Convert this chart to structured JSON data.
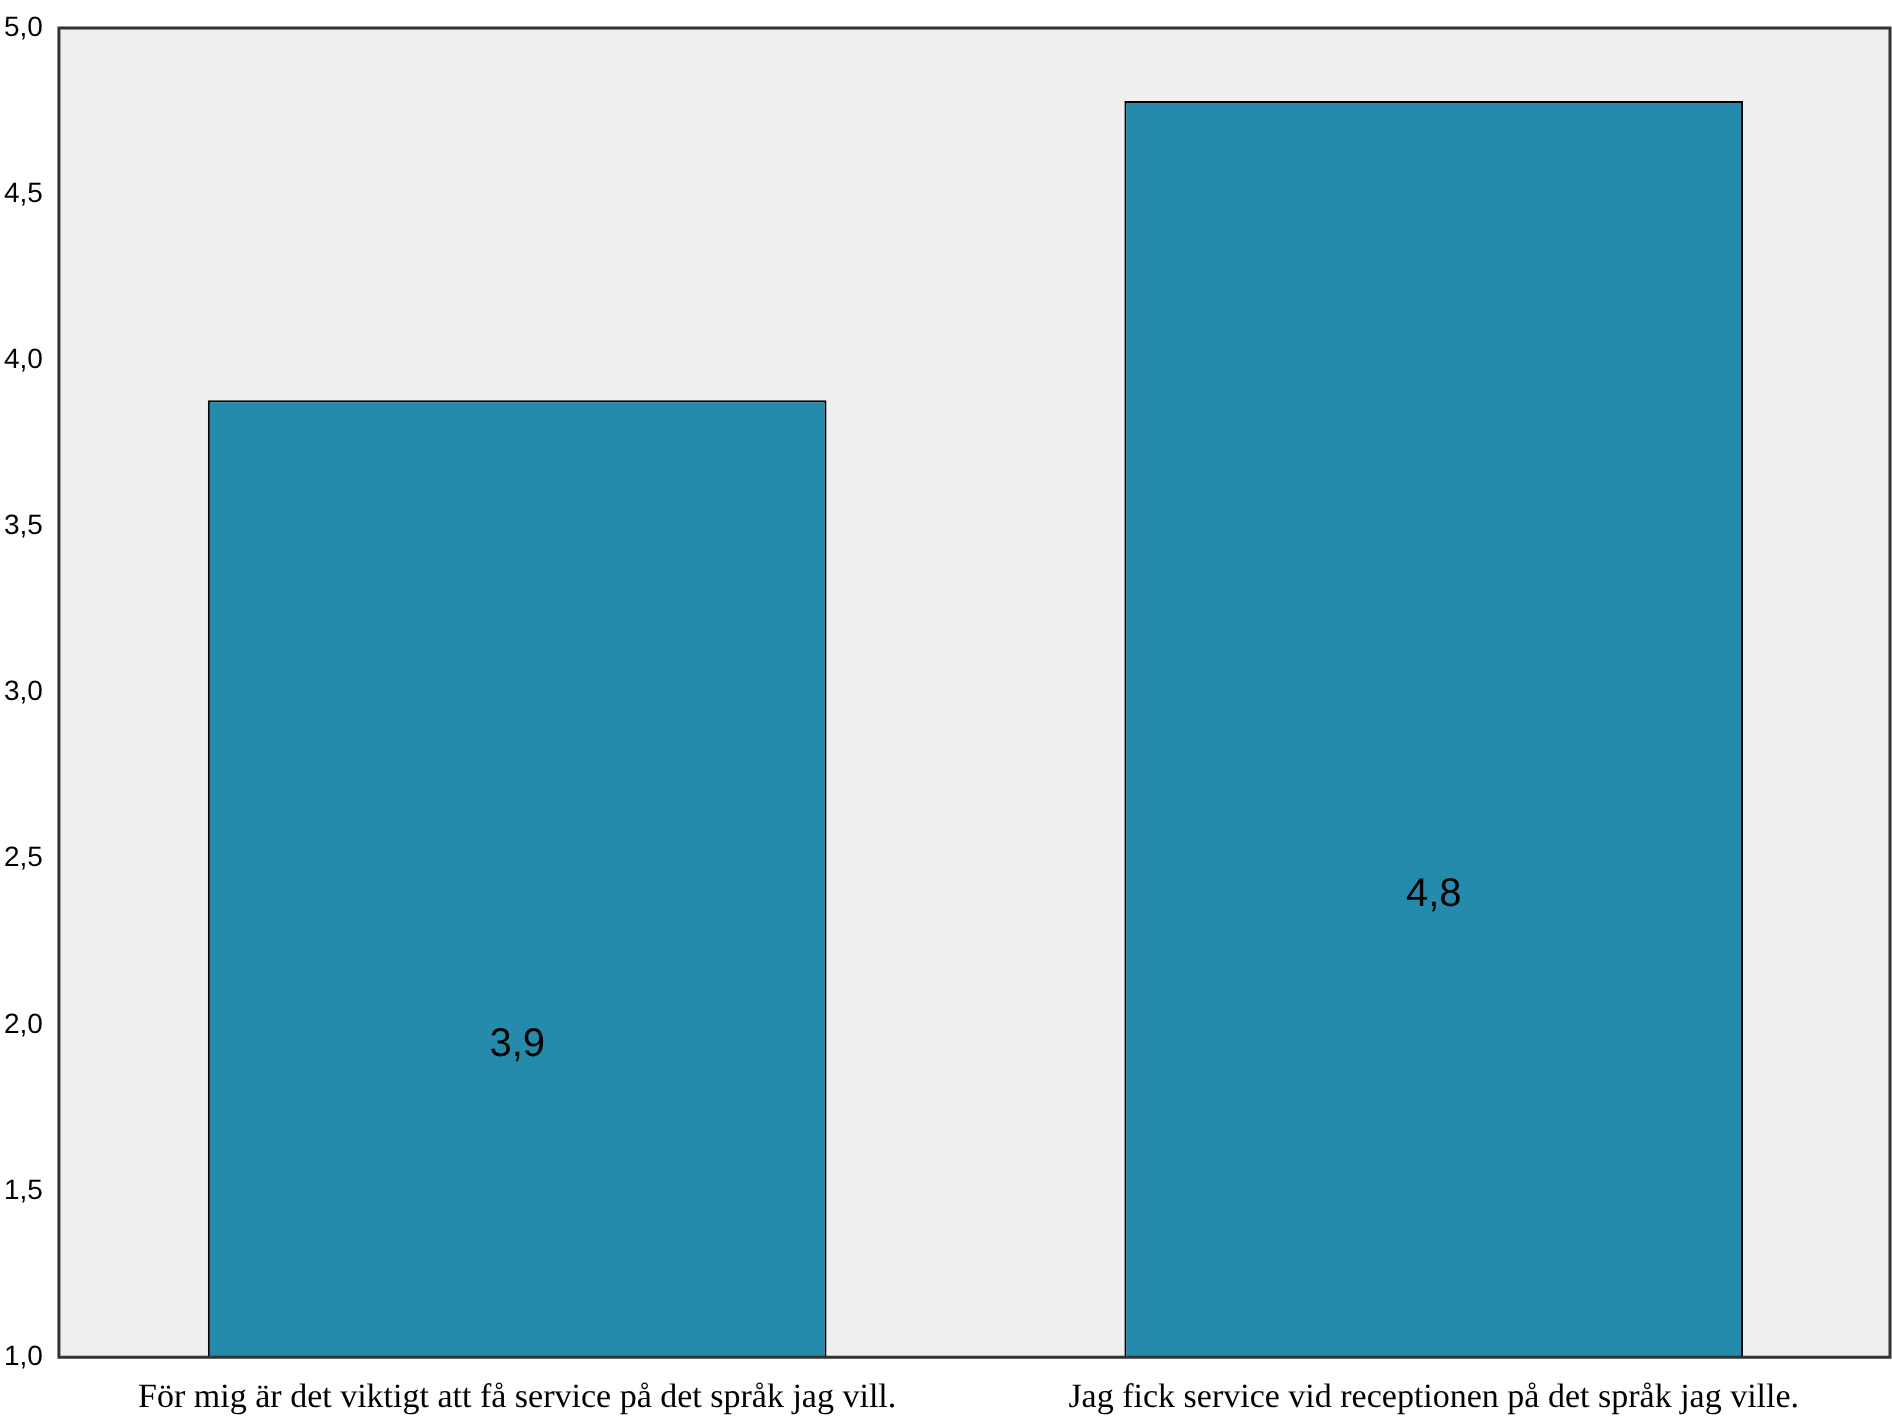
{
  "chart_data": {
    "type": "bar",
    "categories": [
      "För mig är det viktigt att få service på det språk jag vill.",
      "Jag fick service vid receptionen på det språk jag ville."
    ],
    "values": [
      3.88,
      4.78
    ],
    "color": "#248bad",
    "value_labels": [
      "3,9",
      "4,8"
    ],
    "ylim": [
      1,
      5
    ],
    "yticks": [
      {
        "value": 1,
        "label": "1,0"
      },
      {
        "value": 1.5,
        "label": "1,5"
      },
      {
        "value": 2,
        "label": "2,0"
      },
      {
        "value": 2.5,
        "label": "2,5"
      },
      {
        "value": 3,
        "label": "3,0"
      },
      {
        "value": 3.5,
        "label": "3,5"
      },
      {
        "value": 4,
        "label": "4,0"
      },
      {
        "value": 4.5,
        "label": "4,5"
      },
      {
        "value": 5,
        "label": "5,0"
      }
    ],
    "grid": false,
    "legend": false
  }
}
